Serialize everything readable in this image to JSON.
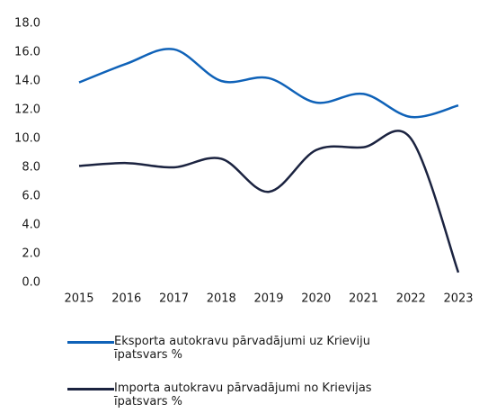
{
  "chart_data": {
    "type": "line",
    "categories": [
      "2015",
      "2016",
      "2017",
      "2018",
      "2019",
      "2020",
      "2021",
      "2022",
      "2023"
    ],
    "series": [
      {
        "name": "Eksporta autokravu pārvadājumi uz Krieviju īpatsvars %",
        "color": "#0f62b8",
        "values": [
          13.9,
          15.2,
          16.2,
          14.0,
          14.2,
          12.5,
          13.1,
          11.5,
          12.3
        ]
      },
      {
        "name": "Importa autokravu pārvadājumi no Krievijas īpatsvars %",
        "color": "#1b2340",
        "values": [
          8.1,
          8.3,
          8.0,
          8.6,
          6.3,
          9.2,
          9.4,
          10.0,
          0.7
        ]
      }
    ],
    "ylim": [
      0,
      18
    ],
    "yticks": [
      {
        "value": 0,
        "label": "0.0"
      },
      {
        "value": 2,
        "label": "2.0"
      },
      {
        "value": 4,
        "label": "4.0"
      },
      {
        "value": 6,
        "label": "6.0"
      },
      {
        "value": 8,
        "label": "8.0"
      },
      {
        "value": 10,
        "label": "10.0"
      },
      {
        "value": 12,
        "label": "12.0"
      },
      {
        "value": 14,
        "label": "14.0"
      },
      {
        "value": 16,
        "label": "16.0"
      },
      {
        "value": 18,
        "label": "18.0"
      }
    ],
    "grid": false,
    "smooth": true,
    "legend": "bottom"
  }
}
